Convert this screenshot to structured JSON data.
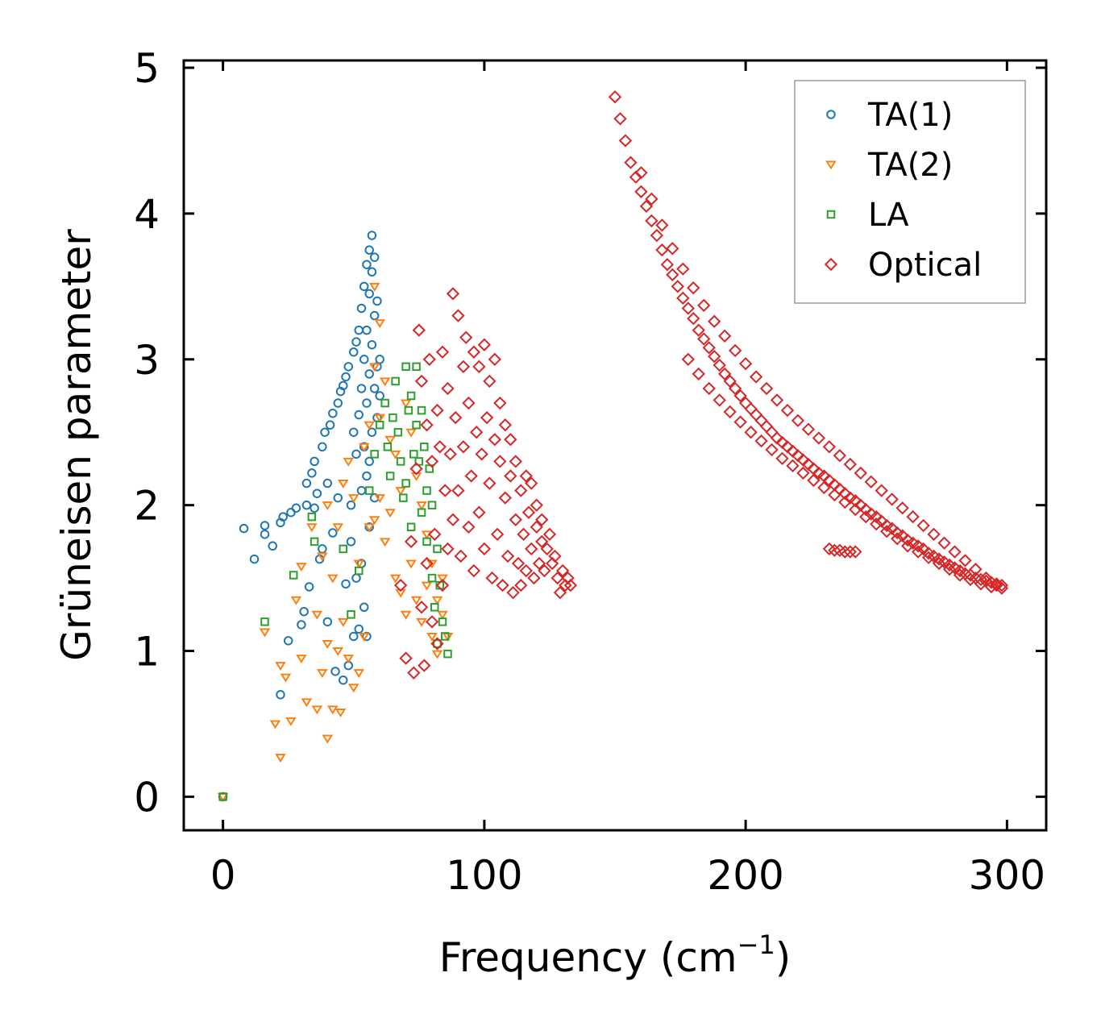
{
  "chart_data": {
    "type": "scatter",
    "title": "",
    "xlabel": "Frequency (cm",
    "xlabel_sup": "−1",
    "xlabel_close": ")",
    "ylabel": "Grüneisen parameter",
    "xlim": [
      -15,
      315
    ],
    "ylim": [
      -0.23,
      5.05
    ],
    "xticks": [
      0,
      100,
      200,
      300
    ],
    "yticks": [
      0,
      1,
      2,
      3,
      4,
      5
    ],
    "xtick_labels": [
      "0",
      "100",
      "200",
      "300"
    ],
    "ytick_labels": [
      "0",
      "1",
      "2",
      "3",
      "4",
      "5"
    ],
    "legend_position": "top-right",
    "series": [
      {
        "name": "TA(1)",
        "color": "#1f77b4",
        "marker": "circle",
        "x": [
          0,
          8,
          12,
          16,
          16,
          19,
          22,
          22,
          23,
          25,
          26,
          28,
          30,
          31,
          32,
          32,
          33,
          34,
          35,
          35,
          36,
          37,
          38,
          38,
          39,
          40,
          40,
          41,
          42,
          42,
          43,
          44,
          44,
          45,
          46,
          46,
          47,
          47,
          48,
          48,
          49,
          49,
          50,
          50,
          50,
          51,
          51,
          51,
          52,
          52,
          52,
          53,
          53,
          53,
          53,
          54,
          54,
          54,
          54,
          55,
          55,
          55,
          55,
          55,
          56,
          56,
          56,
          56,
          56,
          57,
          57,
          57,
          57,
          58,
          58,
          58,
          58,
          59,
          59,
          59,
          60,
          60
        ],
        "y": [
          0.0,
          1.84,
          1.63,
          1.86,
          1.8,
          1.72,
          1.88,
          0.7,
          1.92,
          1.07,
          1.95,
          1.98,
          1.18,
          1.27,
          2.0,
          2.15,
          1.44,
          2.22,
          2.3,
          1.98,
          2.08,
          1.63,
          2.4,
          1.7,
          2.5,
          1.2,
          2.15,
          2.55,
          1.81,
          2.63,
          0.86,
          2.7,
          2.05,
          2.78,
          0.8,
          2.82,
          1.46,
          2.88,
          0.9,
          2.95,
          2.0,
          1.75,
          3.05,
          2.5,
          1.1,
          3.12,
          2.35,
          1.5,
          3.2,
          2.62,
          1.15,
          3.35,
          2.8,
          2.1,
          1.6,
          3.5,
          3.0,
          2.4,
          1.3,
          3.65,
          3.2,
          2.7,
          2.2,
          1.1,
          3.75,
          3.45,
          2.9,
          2.3,
          1.85,
          3.85,
          3.6,
          3.1,
          2.5,
          3.7,
          3.3,
          2.8,
          2.05,
          3.4,
          2.95,
          2.6,
          3.0,
          2.75
        ]
      },
      {
        "name": "TA(2)",
        "color": "#ff7f0e",
        "marker": "triangle-down",
        "x": [
          0,
          16,
          20,
          22,
          22,
          24,
          26,
          28,
          30,
          30,
          32,
          34,
          36,
          36,
          38,
          38,
          40,
          40,
          40,
          42,
          42,
          44,
          44,
          45,
          46,
          46,
          48,
          48,
          50,
          50,
          52,
          52,
          54,
          54,
          56,
          56,
          58,
          58,
          58,
          60,
          60,
          60,
          62,
          62,
          64,
          64,
          66,
          66,
          68,
          68,
          70,
          70,
          72,
          72,
          74,
          74,
          76,
          76,
          78,
          78,
          80,
          80,
          82,
          82,
          84,
          84,
          86
        ],
        "y": [
          0.0,
          1.13,
          0.5,
          0.27,
          0.9,
          0.82,
          0.52,
          1.35,
          0.95,
          1.58,
          0.65,
          1.85,
          0.6,
          1.25,
          1.65,
          0.85,
          2.0,
          0.4,
          1.05,
          1.5,
          0.6,
          1.85,
          1.0,
          0.58,
          2.15,
          1.2,
          2.3,
          0.95,
          2.05,
          0.75,
          1.6,
          0.85,
          2.4,
          1.1,
          2.55,
          1.85,
          3.5,
          2.95,
          1.9,
          3.25,
          2.6,
          2.05,
          2.85,
          1.75,
          2.45,
          1.95,
          2.35,
          1.5,
          2.1,
          1.4,
          2.7,
          1.25,
          2.5,
          1.6,
          2.2,
          1.35,
          2.0,
          1.2,
          1.8,
          1.45,
          1.6,
          1.1,
          1.35,
          0.98,
          1.25,
          1.5,
          1.1
        ]
      },
      {
        "name": "LA",
        "color": "#2ca02c",
        "marker": "square",
        "x": [
          0,
          16,
          27,
          34,
          35,
          46,
          49,
          52,
          56,
          58,
          60,
          62,
          63,
          64,
          65,
          66,
          67,
          68,
          69,
          70,
          70,
          71,
          72,
          72,
          73,
          74,
          74,
          75,
          76,
          76,
          77,
          78,
          78,
          79,
          80,
          80,
          81,
          82,
          82,
          83,
          84,
          85,
          86
        ],
        "y": [
          0.0,
          1.2,
          1.52,
          1.92,
          1.75,
          1.7,
          1.25,
          1.55,
          2.1,
          2.35,
          2.55,
          2.7,
          2.4,
          2.2,
          2.6,
          2.85,
          2.5,
          2.3,
          2.05,
          2.95,
          2.15,
          2.65,
          1.85,
          2.75,
          2.35,
          2.95,
          2.55,
          2.3,
          1.95,
          2.65,
          2.4,
          2.1,
          1.75,
          2.25,
          1.5,
          2.0,
          1.3,
          1.05,
          1.7,
          1.45,
          1.2,
          1.1,
          0.98
        ]
      },
      {
        "name": "Optical",
        "color": "#d62728",
        "marker": "diamond",
        "x": [
          68,
          70,
          72,
          73,
          74,
          75,
          76,
          76,
          77,
          78,
          78,
          79,
          80,
          80,
          81,
          82,
          82,
          83,
          84,
          84,
          85,
          86,
          86,
          87,
          88,
          88,
          89,
          90,
          90,
          91,
          92,
          92,
          93,
          94,
          94,
          95,
          96,
          96,
          97,
          98,
          98,
          99,
          100,
          100,
          101,
          102,
          102,
          103,
          104,
          104,
          105,
          106,
          106,
          107,
          108,
          108,
          109,
          110,
          110,
          111,
          112,
          112,
          113,
          114,
          114,
          115,
          116,
          116,
          117,
          118,
          118,
          119,
          120,
          120,
          121,
          122,
          122,
          123,
          124,
          125,
          126,
          127,
          128,
          129,
          130,
          131,
          132,
          133,
          150,
          152,
          154,
          156,
          158,
          160,
          162,
          164,
          166,
          168,
          170,
          172,
          174,
          176,
          178,
          180,
          182,
          184,
          186,
          188,
          190,
          192,
          194,
          196,
          198,
          200,
          202,
          204,
          206,
          208,
          210,
          212,
          214,
          216,
          218,
          220,
          222,
          224,
          226,
          228,
          230,
          232,
          234,
          236,
          238,
          240,
          242,
          244,
          246,
          248,
          250,
          252,
          254,
          256,
          258,
          260,
          262,
          264,
          266,
          268,
          270,
          272,
          274,
          276,
          278,
          280,
          282,
          284,
          286,
          288,
          290,
          292,
          294,
          296,
          298,
          178,
          182,
          186,
          190,
          194,
          198,
          202,
          206,
          210,
          214,
          218,
          222,
          226,
          230,
          234,
          238,
          242,
          246,
          250,
          254,
          258,
          262,
          266,
          270,
          274,
          278,
          282,
          286,
          290,
          294,
          298,
          232,
          234,
          236,
          238,
          240,
          242,
          160,
          164,
          168,
          172,
          176,
          180,
          184,
          188,
          192,
          196,
          200,
          204,
          208,
          212,
          216,
          220,
          224,
          228,
          232,
          236,
          240,
          244,
          248,
          252,
          256,
          260,
          264,
          268,
          272,
          276,
          280,
          284,
          288,
          292,
          296
        ],
        "y": [
          1.45,
          0.95,
          1.75,
          0.85,
          2.25,
          3.2,
          1.3,
          2.85,
          0.9,
          2.55,
          1.6,
          3.0,
          1.2,
          2.3,
          1.8,
          2.65,
          1.05,
          2.4,
          3.05,
          1.45,
          2.1,
          1.7,
          2.8,
          2.35,
          3.45,
          1.9,
          2.6,
          3.3,
          2.1,
          1.65,
          2.95,
          2.4,
          3.15,
          1.85,
          2.7,
          2.2,
          3.05,
          1.55,
          2.5,
          2.95,
          1.95,
          2.35,
          3.1,
          1.7,
          2.6,
          2.85,
          2.15,
          1.5,
          2.45,
          3.0,
          1.8,
          2.3,
          2.7,
          1.45,
          2.05,
          2.55,
          1.65,
          2.2,
          2.45,
          1.4,
          1.9,
          2.3,
          1.6,
          2.1,
          1.45,
          1.8,
          2.2,
          1.55,
          1.95,
          1.7,
          2.15,
          1.5,
          1.85,
          2.0,
          1.6,
          1.75,
          1.9,
          1.55,
          1.7,
          1.8,
          1.6,
          1.65,
          1.5,
          1.4,
          1.55,
          1.45,
          1.5,
          1.45,
          4.8,
          4.65,
          4.5,
          4.35,
          4.25,
          4.15,
          4.05,
          3.95,
          3.85,
          3.75,
          3.65,
          3.58,
          3.5,
          3.42,
          3.35,
          3.28,
          3.2,
          3.14,
          3.08,
          3.02,
          2.96,
          2.9,
          2.85,
          2.8,
          2.75,
          2.7,
          2.66,
          2.62,
          2.58,
          2.54,
          2.5,
          2.46,
          2.43,
          2.4,
          2.37,
          2.34,
          2.31,
          2.28,
          2.25,
          2.22,
          2.2,
          2.17,
          2.14,
          2.11,
          2.08,
          2.05,
          2.03,
          2.0,
          1.97,
          1.94,
          1.92,
          1.89,
          1.86,
          1.84,
          1.81,
          1.79,
          1.76,
          1.74,
          1.72,
          1.7,
          1.67,
          1.65,
          1.63,
          1.61,
          1.59,
          1.57,
          1.55,
          1.53,
          1.52,
          1.5,
          1.49,
          1.48,
          1.47,
          1.46,
          1.45,
          3.0,
          2.9,
          2.8,
          2.72,
          2.64,
          2.57,
          2.5,
          2.44,
          2.38,
          2.32,
          2.27,
          2.22,
          2.17,
          2.12,
          2.07,
          2.02,
          1.97,
          1.92,
          1.87,
          1.82,
          1.77,
          1.72,
          1.68,
          1.64,
          1.6,
          1.56,
          1.52,
          1.49,
          1.46,
          1.44,
          1.43,
          1.7,
          1.69,
          1.69,
          1.68,
          1.68,
          1.68,
          4.28,
          4.1,
          3.92,
          3.76,
          3.62,
          3.49,
          3.37,
          3.26,
          3.16,
          3.06,
          2.97,
          2.88,
          2.8,
          2.72,
          2.65,
          2.58,
          2.52,
          2.46,
          2.4,
          2.34,
          2.28,
          2.22,
          2.16,
          2.1,
          2.04,
          1.98,
          1.92,
          1.86,
          1.8,
          1.74,
          1.68,
          1.62,
          1.56,
          1.5,
          1.45
        ]
      }
    ]
  }
}
